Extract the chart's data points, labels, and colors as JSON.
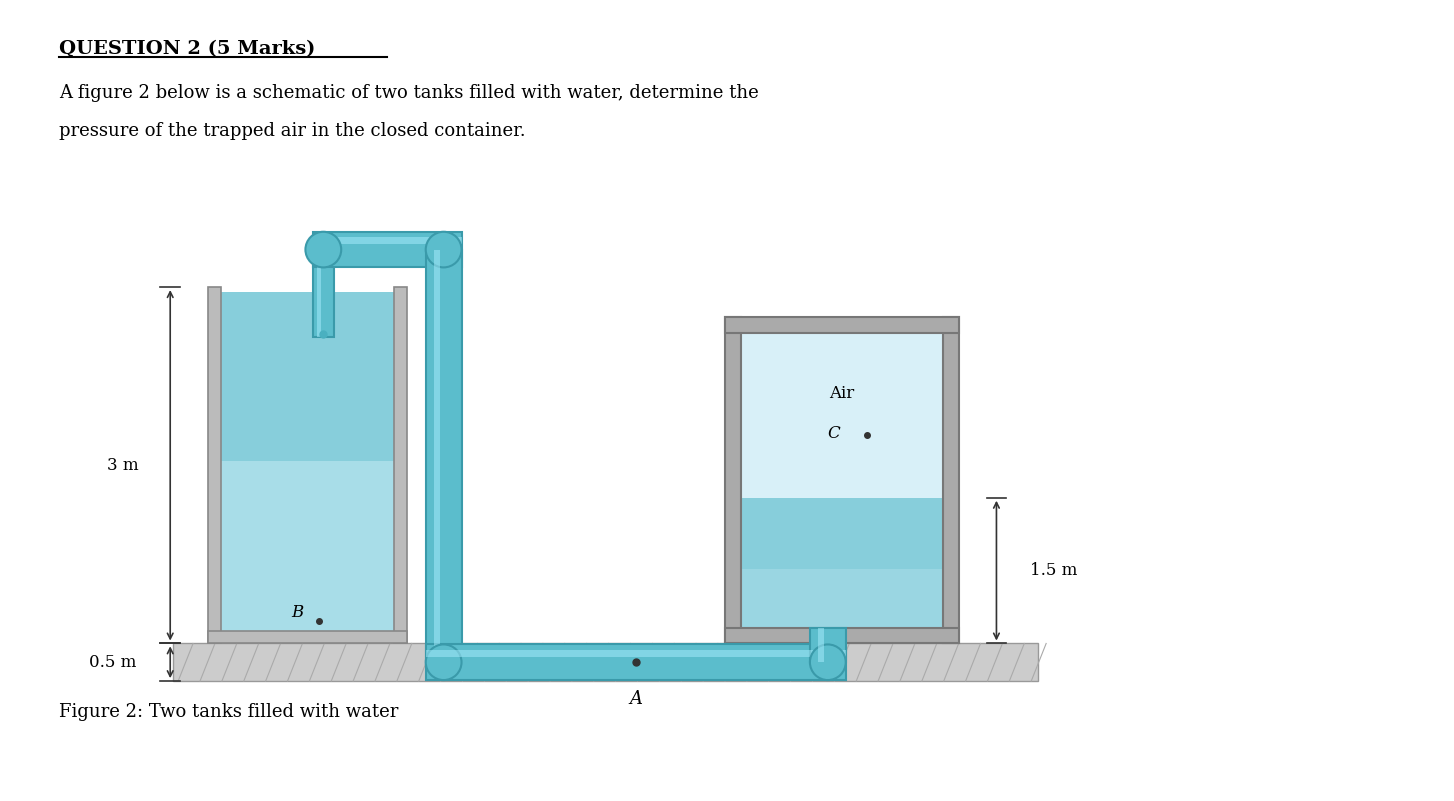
{
  "title": "QUESTION 2 (5 Marks)",
  "subtitle1": "A figure 2 below is a schematic of two tanks filled with water, determine the",
  "subtitle2": "pressure of the trapped air in the closed container.",
  "caption": "Figure 2: Two tanks filled with water",
  "bg_color": "#ffffff",
  "pipe_color": "#5bbdcc",
  "pipe_edge": "#3a9aaa",
  "water_light": "#a8dde8",
  "water_mid": "#87cedb",
  "water_dark": "#5bbdcc",
  "air_color": "#d8f0f8",
  "wall_color": "#bbbbbb",
  "wall_edge": "#888888",
  "ground_color": "#cccccc",
  "ground_edge": "#999999",
  "dim_color": "#333333",
  "dim_3m": "3 m",
  "dim_05m": "0.5 m",
  "dim_15m": "1.5 m",
  "label_A": "A",
  "label_B": "B",
  "label_C": "C",
  "label_Air": "Air"
}
